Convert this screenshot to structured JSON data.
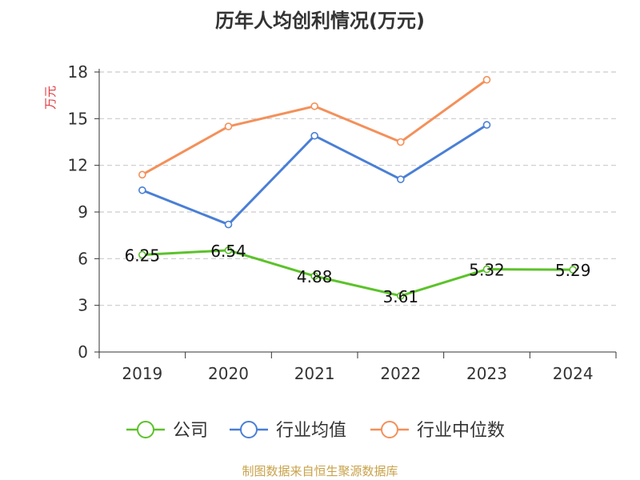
{
  "chart_data": {
    "type": "line",
    "title": "历年人均创利情况(万元)",
    "ylabel": "万元",
    "categories": [
      "2019",
      "2020",
      "2021",
      "2022",
      "2023",
      "2024"
    ],
    "ylim": [
      0,
      18
    ],
    "yticks": [
      0,
      3,
      6,
      9,
      12,
      15,
      18
    ],
    "grid": true,
    "legend_position": "bottom",
    "series": [
      {
        "name": "公司",
        "color": "#5cc22a",
        "values": [
          6.25,
          6.54,
          4.88,
          3.61,
          5.32,
          5.29
        ],
        "labels": [
          "6.25",
          "6.54",
          "4.88",
          "3.61",
          "5.32",
          "5.29"
        ]
      },
      {
        "name": "行业均值",
        "color": "#4a7fd6",
        "values": [
          10.4,
          8.2,
          13.9,
          11.1,
          14.6,
          null
        ]
      },
      {
        "name": "行业中位数",
        "color": "#f4905a",
        "values": [
          11.4,
          14.5,
          15.8,
          13.5,
          17.5,
          null
        ]
      }
    ],
    "footer": "制图数据来自恒生聚源数据库"
  }
}
